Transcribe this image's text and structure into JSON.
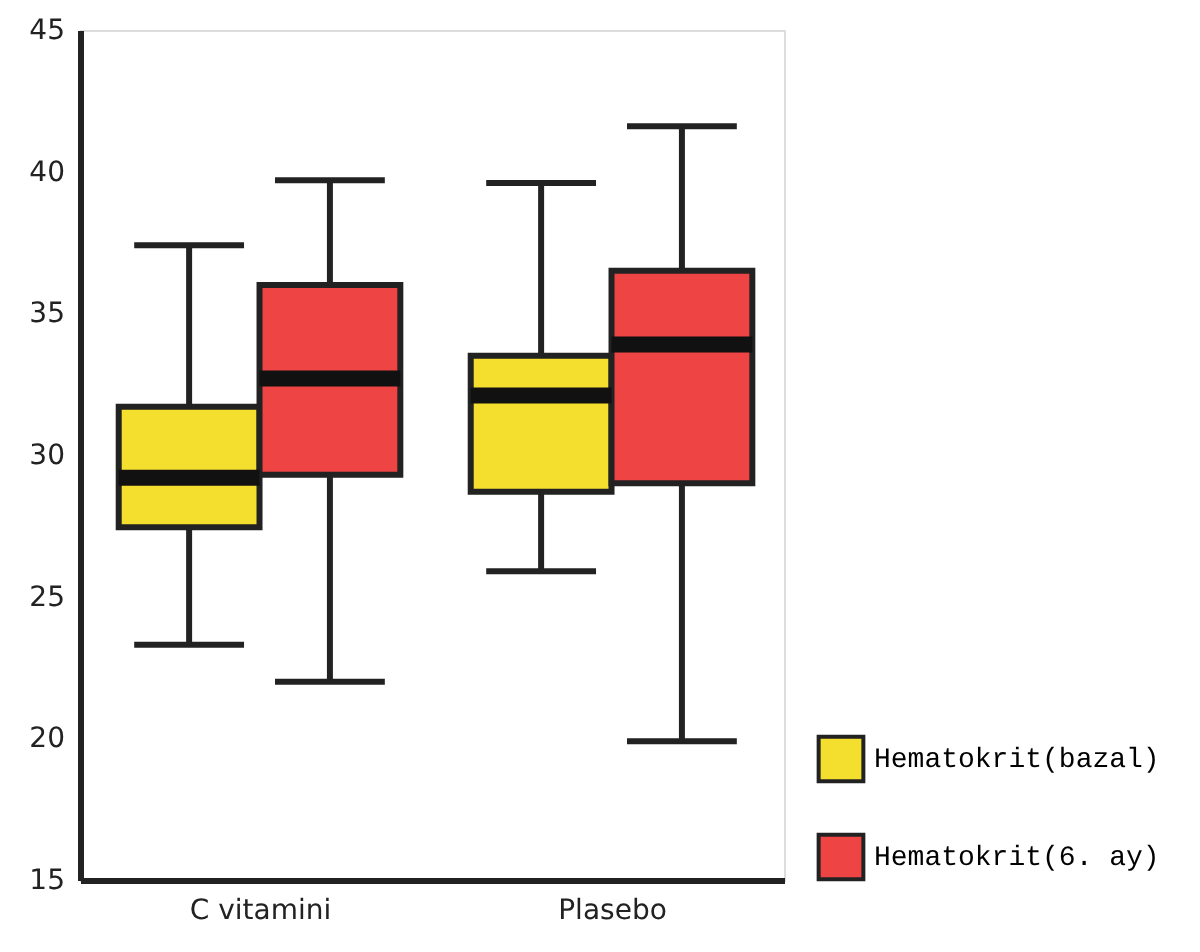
{
  "chart_data": {
    "type": "box",
    "categories": [
      "C vitamini",
      "Plasebo"
    ],
    "ylim": [
      15,
      45
    ],
    "yticks": [
      15,
      20,
      25,
      30,
      35,
      40,
      45
    ],
    "grid": false,
    "legend": "bottom right",
    "series": [
      {
        "name": "Hematokrit(bazal)",
        "color": "#f5df2e",
        "boxes": [
          {
            "low": 23.3,
            "q1": 27.45,
            "median": 29.2,
            "q3": 31.7,
            "high": 37.4
          },
          {
            "low": 25.9,
            "q1": 28.7,
            "median": 32.1,
            "q3": 33.5,
            "high": 39.6
          }
        ]
      },
      {
        "name": "Hematokrit(6. ay)",
        "color": "#ee4444",
        "boxes": [
          {
            "low": 22.0,
            "q1": 29.3,
            "median": 32.7,
            "q3": 36.0,
            "high": 39.7
          },
          {
            "low": 19.9,
            "q1": 29.0,
            "median": 33.9,
            "q3": 36.5,
            "high": 41.6
          }
        ]
      }
    ]
  }
}
